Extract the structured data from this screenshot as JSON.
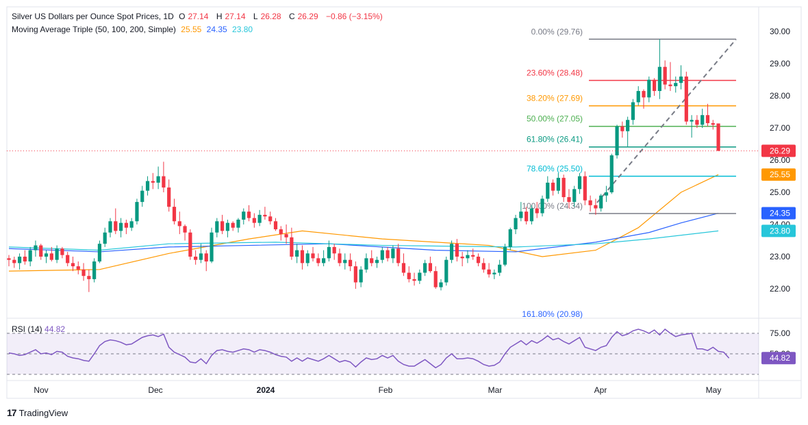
{
  "legend": {
    "title": "Silver US Dollars per Ounce Spot Prices, 1D",
    "open_label": "O",
    "open": "27.14",
    "high_label": "H",
    "high": "27.14",
    "low_label": "L",
    "low": "26.28",
    "close_label": "C",
    "close": "26.29",
    "change": "−0.86 (−3.15%)",
    "ma_label": "Moving Average Triple (50, 100, 200, Simple)",
    "ma50": "25.55",
    "ma100": "24.35",
    "ma200": "23.80",
    "rsi_label": "RSI (14)",
    "rsi_value": "44.82"
  },
  "colors": {
    "up": "#089981",
    "down": "#f23645",
    "ma50": "#ff9800",
    "ma100": "#2962ff",
    "ma200": "#26c6da",
    "rsi": "#7e57c2",
    "fib_0": "#787b86",
    "fib_236": "#f23645",
    "fib_382": "#ff9800",
    "fib_50": "#4caf50",
    "fib_618": "#089981",
    "fib_786": "#00bcd4",
    "fib_100": "#787b86"
  },
  "footer": {
    "brand": "TradingView",
    "logo": "17"
  },
  "chart_data": [
    {
      "type": "candlestick",
      "title": "Silver US Dollars per Ounce Spot Prices, 1D",
      "price_axis": [
        "30.00",
        "29.00",
        "28.00",
        "27.00",
        "26.00",
        "25.00",
        "24.00",
        "23.00",
        "22.00"
      ],
      "ylim": [
        21.5,
        30.3
      ],
      "time_axis": [
        "Nov",
        "Dec",
        "2024",
        "Feb",
        "Mar",
        "Apr",
        "May"
      ],
      "last_price": "26.29",
      "ma_badges": [
        "25.55",
        "24.35",
        "23.80"
      ],
      "fib_levels": [
        {
          "label": "0.00% (29.76)",
          "price": 29.76,
          "key": "fib_0"
        },
        {
          "label": "23.60% (28.48)",
          "price": 28.48,
          "key": "fib_236"
        },
        {
          "label": "38.20% (27.69)",
          "price": 27.69,
          "key": "fib_382"
        },
        {
          "label": "50.00% (27.05)",
          "price": 27.05,
          "key": "fib_50"
        },
        {
          "label": "61.80% (26.41)",
          "price": 26.41,
          "key": "fib_618"
        },
        {
          "label": "78.60% (25.50)",
          "price": 25.5,
          "key": "fib_786"
        },
        {
          "label": "100.00% (24.34)",
          "price": 24.34,
          "key": "fib_100"
        },
        {
          "label": "161.80% (20.98)",
          "price": 20.98,
          "key": "fib_1618"
        }
      ],
      "ohlc": [
        [
          22.95,
          23.05,
          22.7,
          22.9
        ],
        [
          22.9,
          23.0,
          22.65,
          22.8
        ],
        [
          22.8,
          23.1,
          22.6,
          23.0
        ],
        [
          23.0,
          23.2,
          22.75,
          22.85
        ],
        [
          22.85,
          23.3,
          22.7,
          23.2
        ],
        [
          23.2,
          23.5,
          23.0,
          23.35
        ],
        [
          23.35,
          23.4,
          22.9,
          23.0
        ],
        [
          23.0,
          23.2,
          22.8,
          23.1
        ],
        [
          23.1,
          23.3,
          22.85,
          22.9
        ],
        [
          22.9,
          23.35,
          22.8,
          23.25
        ],
        [
          23.25,
          23.3,
          22.95,
          23.05
        ],
        [
          23.05,
          23.15,
          22.7,
          22.8
        ],
        [
          22.8,
          23.0,
          22.55,
          22.7
        ],
        [
          22.7,
          22.85,
          22.45,
          22.6
        ],
        [
          22.6,
          22.8,
          22.25,
          22.4
        ],
        [
          22.4,
          22.6,
          21.9,
          22.3
        ],
        [
          22.3,
          22.95,
          22.2,
          22.85
        ],
        [
          22.85,
          23.5,
          22.8,
          23.4
        ],
        [
          23.4,
          23.9,
          23.3,
          23.75
        ],
        [
          23.75,
          24.2,
          23.6,
          24.1
        ],
        [
          24.1,
          24.5,
          23.7,
          23.8
        ],
        [
          23.8,
          24.2,
          23.6,
          24.05
        ],
        [
          24.05,
          24.15,
          23.7,
          23.9
        ],
        [
          23.9,
          24.2,
          23.8,
          24.1
        ],
        [
          24.1,
          24.8,
          24.0,
          24.7
        ],
        [
          24.7,
          25.2,
          24.55,
          25.05
        ],
        [
          25.05,
          25.5,
          24.9,
          25.35
        ],
        [
          25.35,
          25.6,
          25.1,
          25.3
        ],
        [
          25.3,
          25.8,
          25.1,
          25.5
        ],
        [
          25.5,
          25.95,
          25.0,
          25.15
        ],
        [
          25.15,
          25.4,
          24.4,
          24.55
        ],
        [
          24.55,
          24.8,
          24.0,
          24.1
        ],
        [
          24.1,
          24.4,
          23.7,
          23.95
        ],
        [
          23.95,
          24.0,
          23.5,
          23.75
        ],
        [
          23.75,
          23.85,
          22.9,
          23.0
        ],
        [
          23.0,
          23.2,
          22.75,
          22.9
        ],
        [
          22.9,
          23.4,
          22.8,
          23.1
        ],
        [
          23.1,
          23.2,
          22.55,
          22.85
        ],
        [
          22.85,
          23.9,
          22.8,
          23.75
        ],
        [
          23.75,
          24.2,
          23.6,
          24.1
        ],
        [
          24.1,
          24.3,
          23.7,
          23.8
        ],
        [
          23.8,
          24.15,
          23.6,
          24.05
        ],
        [
          24.05,
          24.1,
          23.8,
          23.9
        ],
        [
          23.9,
          24.2,
          23.75,
          24.15
        ],
        [
          24.15,
          24.5,
          24.0,
          24.4
        ],
        [
          24.4,
          24.6,
          24.1,
          24.2
        ],
        [
          24.2,
          24.35,
          23.9,
          24.05
        ],
        [
          24.05,
          24.45,
          23.95,
          24.3
        ],
        [
          24.3,
          24.55,
          24.15,
          24.25
        ],
        [
          24.25,
          24.4,
          24.0,
          24.1
        ],
        [
          24.1,
          24.2,
          23.8,
          23.85
        ],
        [
          23.85,
          23.95,
          23.5,
          23.7
        ],
        [
          23.7,
          24.0,
          23.4,
          23.6
        ],
        [
          23.6,
          23.9,
          22.9,
          23.0
        ],
        [
          23.0,
          23.4,
          22.8,
          23.2
        ],
        [
          23.2,
          23.35,
          22.6,
          22.8
        ],
        [
          22.8,
          23.2,
          22.7,
          23.1
        ],
        [
          23.1,
          23.3,
          22.85,
          22.95
        ],
        [
          22.95,
          23.1,
          22.7,
          22.8
        ],
        [
          22.8,
          23.2,
          22.7,
          22.95
        ],
        [
          22.95,
          23.5,
          22.85,
          23.3
        ],
        [
          23.3,
          23.4,
          22.9,
          23.1
        ],
        [
          23.1,
          23.25,
          22.7,
          22.8
        ],
        [
          22.8,
          23.1,
          22.6,
          22.9
        ],
        [
          22.9,
          23.1,
          22.55,
          22.7
        ],
        [
          22.7,
          22.85,
          22.0,
          22.2
        ],
        [
          22.2,
          22.7,
          22.05,
          22.6
        ],
        [
          22.6,
          23.1,
          22.5,
          22.95
        ],
        [
          22.95,
          23.2,
          22.7,
          22.8
        ],
        [
          22.8,
          23.0,
          22.65,
          22.9
        ],
        [
          22.9,
          23.3,
          22.8,
          23.2
        ],
        [
          23.2,
          23.3,
          22.85,
          22.95
        ],
        [
          22.95,
          23.35,
          22.8,
          23.25
        ],
        [
          23.25,
          23.4,
          22.7,
          22.8
        ],
        [
          22.8,
          23.1,
          22.4,
          22.5
        ],
        [
          22.5,
          22.7,
          22.2,
          22.3
        ],
        [
          22.3,
          22.5,
          22.1,
          22.25
        ],
        [
          22.25,
          22.6,
          22.15,
          22.5
        ],
        [
          22.5,
          22.9,
          22.4,
          22.8
        ],
        [
          22.8,
          23.0,
          22.5,
          22.55
        ],
        [
          22.55,
          22.7,
          22.0,
          22.05
        ],
        [
          22.05,
          22.3,
          21.95,
          22.2
        ],
        [
          22.2,
          23.0,
          22.1,
          22.9
        ],
        [
          22.9,
          23.5,
          22.8,
          23.4
        ],
        [
          23.4,
          23.55,
          22.85,
          23.0
        ],
        [
          23.0,
          23.15,
          22.7,
          22.95
        ],
        [
          22.95,
          23.2,
          22.8,
          23.05
        ],
        [
          23.05,
          23.25,
          22.9,
          23.0
        ],
        [
          23.0,
          23.1,
          22.7,
          22.8
        ],
        [
          22.8,
          22.95,
          22.5,
          22.6
        ],
        [
          22.6,
          22.8,
          22.35,
          22.45
        ],
        [
          22.45,
          22.6,
          22.3,
          22.5
        ],
        [
          22.5,
          22.9,
          22.4,
          22.75
        ],
        [
          22.75,
          23.4,
          22.7,
          23.3
        ],
        [
          23.3,
          23.9,
          23.2,
          23.85
        ],
        [
          23.85,
          24.3,
          23.7,
          24.2
        ],
        [
          24.2,
          24.7,
          24.1,
          24.4
        ],
        [
          24.4,
          24.55,
          24.0,
          24.1
        ],
        [
          24.1,
          24.6,
          24.0,
          24.5
        ],
        [
          24.5,
          24.7,
          24.2,
          24.35
        ],
        [
          24.35,
          24.9,
          24.25,
          24.8
        ],
        [
          24.8,
          25.5,
          24.7,
          25.3
        ],
        [
          25.3,
          25.4,
          24.9,
          25.05
        ],
        [
          25.05,
          25.6,
          24.95,
          25.45
        ],
        [
          25.45,
          25.55,
          24.7,
          24.85
        ],
        [
          24.85,
          25.1,
          24.5,
          24.7
        ],
        [
          24.7,
          25.2,
          24.55,
          25.1
        ],
        [
          25.1,
          25.6,
          24.95,
          25.5
        ],
        [
          25.5,
          25.65,
          24.6,
          24.75
        ],
        [
          24.75,
          24.9,
          24.4,
          24.6
        ],
        [
          24.6,
          24.8,
          24.3,
          24.5
        ],
        [
          24.5,
          24.95,
          24.4,
          24.9
        ],
        [
          24.9,
          25.2,
          24.7,
          25.0
        ],
        [
          25.0,
          26.2,
          24.95,
          26.15
        ],
        [
          26.15,
          27.1,
          26.05,
          27.05
        ],
        [
          27.05,
          27.2,
          26.7,
          26.9
        ],
        [
          26.9,
          27.35,
          26.4,
          27.25
        ],
        [
          27.25,
          27.9,
          27.1,
          27.8
        ],
        [
          27.8,
          28.3,
          27.7,
          28.15
        ],
        [
          28.15,
          28.2,
          27.6,
          27.95
        ],
        [
          27.95,
          28.6,
          27.8,
          28.5
        ],
        [
          28.5,
          28.55,
          28.0,
          28.15
        ],
        [
          28.15,
          29.76,
          27.9,
          28.9
        ],
        [
          28.9,
          29.1,
          28.2,
          28.35
        ],
        [
          28.35,
          29.05,
          28.15,
          28.3
        ],
        [
          28.3,
          28.6,
          28.1,
          28.4
        ],
        [
          28.4,
          28.95,
          28.2,
          28.6
        ],
        [
          28.6,
          28.75,
          27.1,
          27.2
        ],
        [
          27.2,
          27.4,
          26.7,
          27.25
        ],
        [
          27.25,
          27.4,
          27.0,
          27.1
        ],
        [
          27.1,
          27.6,
          27.0,
          27.4
        ],
        [
          27.4,
          27.75,
          27.05,
          27.15
        ],
        [
          27.15,
          27.25,
          26.95,
          27.1
        ],
        [
          27.14,
          27.14,
          26.28,
          26.29
        ]
      ],
      "ma": {
        "ma50": [
          [
            0,
            22.55
          ],
          [
            17,
            22.6
          ],
          [
            30,
            23.1
          ],
          [
            45,
            23.55
          ],
          [
            55,
            23.8
          ],
          [
            70,
            23.55
          ],
          [
            90,
            23.35
          ],
          [
            100,
            23.0
          ],
          [
            110,
            23.2
          ],
          [
            118,
            23.9
          ],
          [
            126,
            25.0
          ],
          [
            133,
            25.55
          ]
        ],
        "ma100": [
          [
            0,
            23.25
          ],
          [
            17,
            23.15
          ],
          [
            30,
            23.3
          ],
          [
            45,
            23.35
          ],
          [
            60,
            23.4
          ],
          [
            80,
            23.2
          ],
          [
            95,
            23.15
          ],
          [
            110,
            23.45
          ],
          [
            120,
            23.75
          ],
          [
            126,
            24.05
          ],
          [
            133,
            24.35
          ]
        ],
        "ma200": [
          [
            0,
            23.3
          ],
          [
            17,
            23.2
          ],
          [
            30,
            23.4
          ],
          [
            50,
            23.45
          ],
          [
            70,
            23.35
          ],
          [
            95,
            23.3
          ],
          [
            110,
            23.4
          ],
          [
            120,
            23.55
          ],
          [
            133,
            23.8
          ]
        ]
      }
    },
    {
      "type": "line",
      "title": "RSI (14)",
      "ylim": [
        20,
        80
      ],
      "levels": [
        "75.00",
        "50.00"
      ],
      "last_value": "44.82",
      "values": [
        51,
        50,
        48,
        49,
        52,
        55,
        50,
        51,
        49,
        53,
        52,
        47,
        45,
        44,
        42,
        41,
        50,
        60,
        65,
        67,
        66,
        64,
        61,
        62,
        66,
        70,
        72,
        73,
        71,
        74,
        58,
        52,
        49,
        46,
        40,
        39,
        44,
        38,
        48,
        54,
        55,
        53,
        52,
        54,
        56,
        55,
        52,
        55,
        54,
        52,
        49,
        47,
        46,
        41,
        45,
        41,
        45,
        43,
        41,
        44,
        48,
        44,
        40,
        42,
        40,
        34,
        40,
        45,
        43,
        44,
        48,
        45,
        48,
        41,
        37,
        35,
        35,
        39,
        43,
        38,
        33,
        37,
        45,
        50,
        44,
        44,
        45,
        44,
        41,
        37,
        35,
        36,
        40,
        50,
        58,
        62,
        66,
        61,
        66,
        63,
        67,
        72,
        67,
        69,
        65,
        62,
        66,
        70,
        58,
        56,
        54,
        58,
        60,
        70,
        77,
        72,
        74,
        78,
        80,
        78,
        75,
        79,
        73,
        80,
        75,
        71,
        73,
        74,
        75,
        56,
        56,
        54,
        58,
        53,
        52,
        44.82
      ]
    }
  ]
}
